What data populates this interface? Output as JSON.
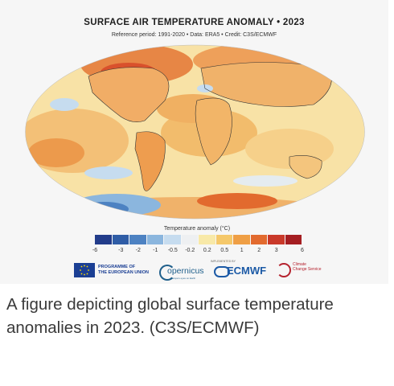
{
  "figure": {
    "title": "SURFACE AIR TEMPERATURE ANOMALY • 2023",
    "subtitle": "Reference period: 1991-2020 • Data: ERA5 • Credit: C3S/ECMWF"
  },
  "scale": {
    "title": "Temperature anomaly (°C)",
    "ticks": [
      "-6",
      "-3",
      "-2",
      "-1",
      "-0.5",
      "-0.2",
      "0.2",
      "0.5",
      "1",
      "2",
      "3",
      "6"
    ],
    "colors": [
      "#223c8a",
      "#2f5da6",
      "#4d82c2",
      "#8bb6de",
      "#c6dcef",
      "#eef0f2",
      "#f8e9a8",
      "#f5c86a",
      "#ef9f45",
      "#e26a2e",
      "#c9392a",
      "#a51e22"
    ]
  },
  "logos": {
    "eu_line1": "PROGRAMME OF",
    "eu_line2": "THE EUROPEAN UNION",
    "copernicus": "opernicus",
    "copernicus_sub": "Europe's eyes on Earth",
    "implemented_by": "IMPLEMENTED BY",
    "ecmwf": "ECMWF",
    "ccs_line1": "Climate",
    "ccs_line2": "Change Service"
  },
  "caption": "A figure depicting global surface temperature anomalies in 2023. (C3S/ECMWF)"
}
